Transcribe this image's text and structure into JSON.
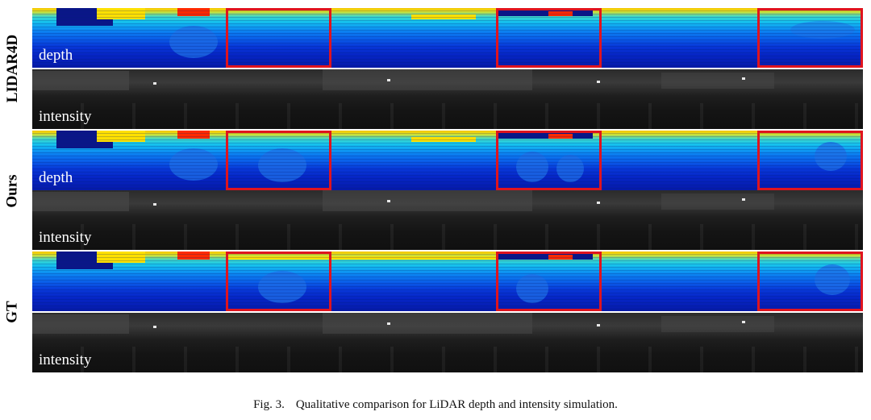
{
  "figure": {
    "methods": [
      {
        "name": "LIDAR4D"
      },
      {
        "name": "Ours"
      },
      {
        "name": "GT"
      }
    ],
    "depth_label": "depth",
    "intensity_label": "intensity"
  },
  "caption": {
    "fig_number": "Fig. 3.",
    "text": "Qualitative comparison for LiDAR depth and intensity simulation."
  },
  "colors": {
    "roi_box": "#e0141e",
    "depth_far": "#f5c400",
    "depth_near": "#061aa8"
  }
}
